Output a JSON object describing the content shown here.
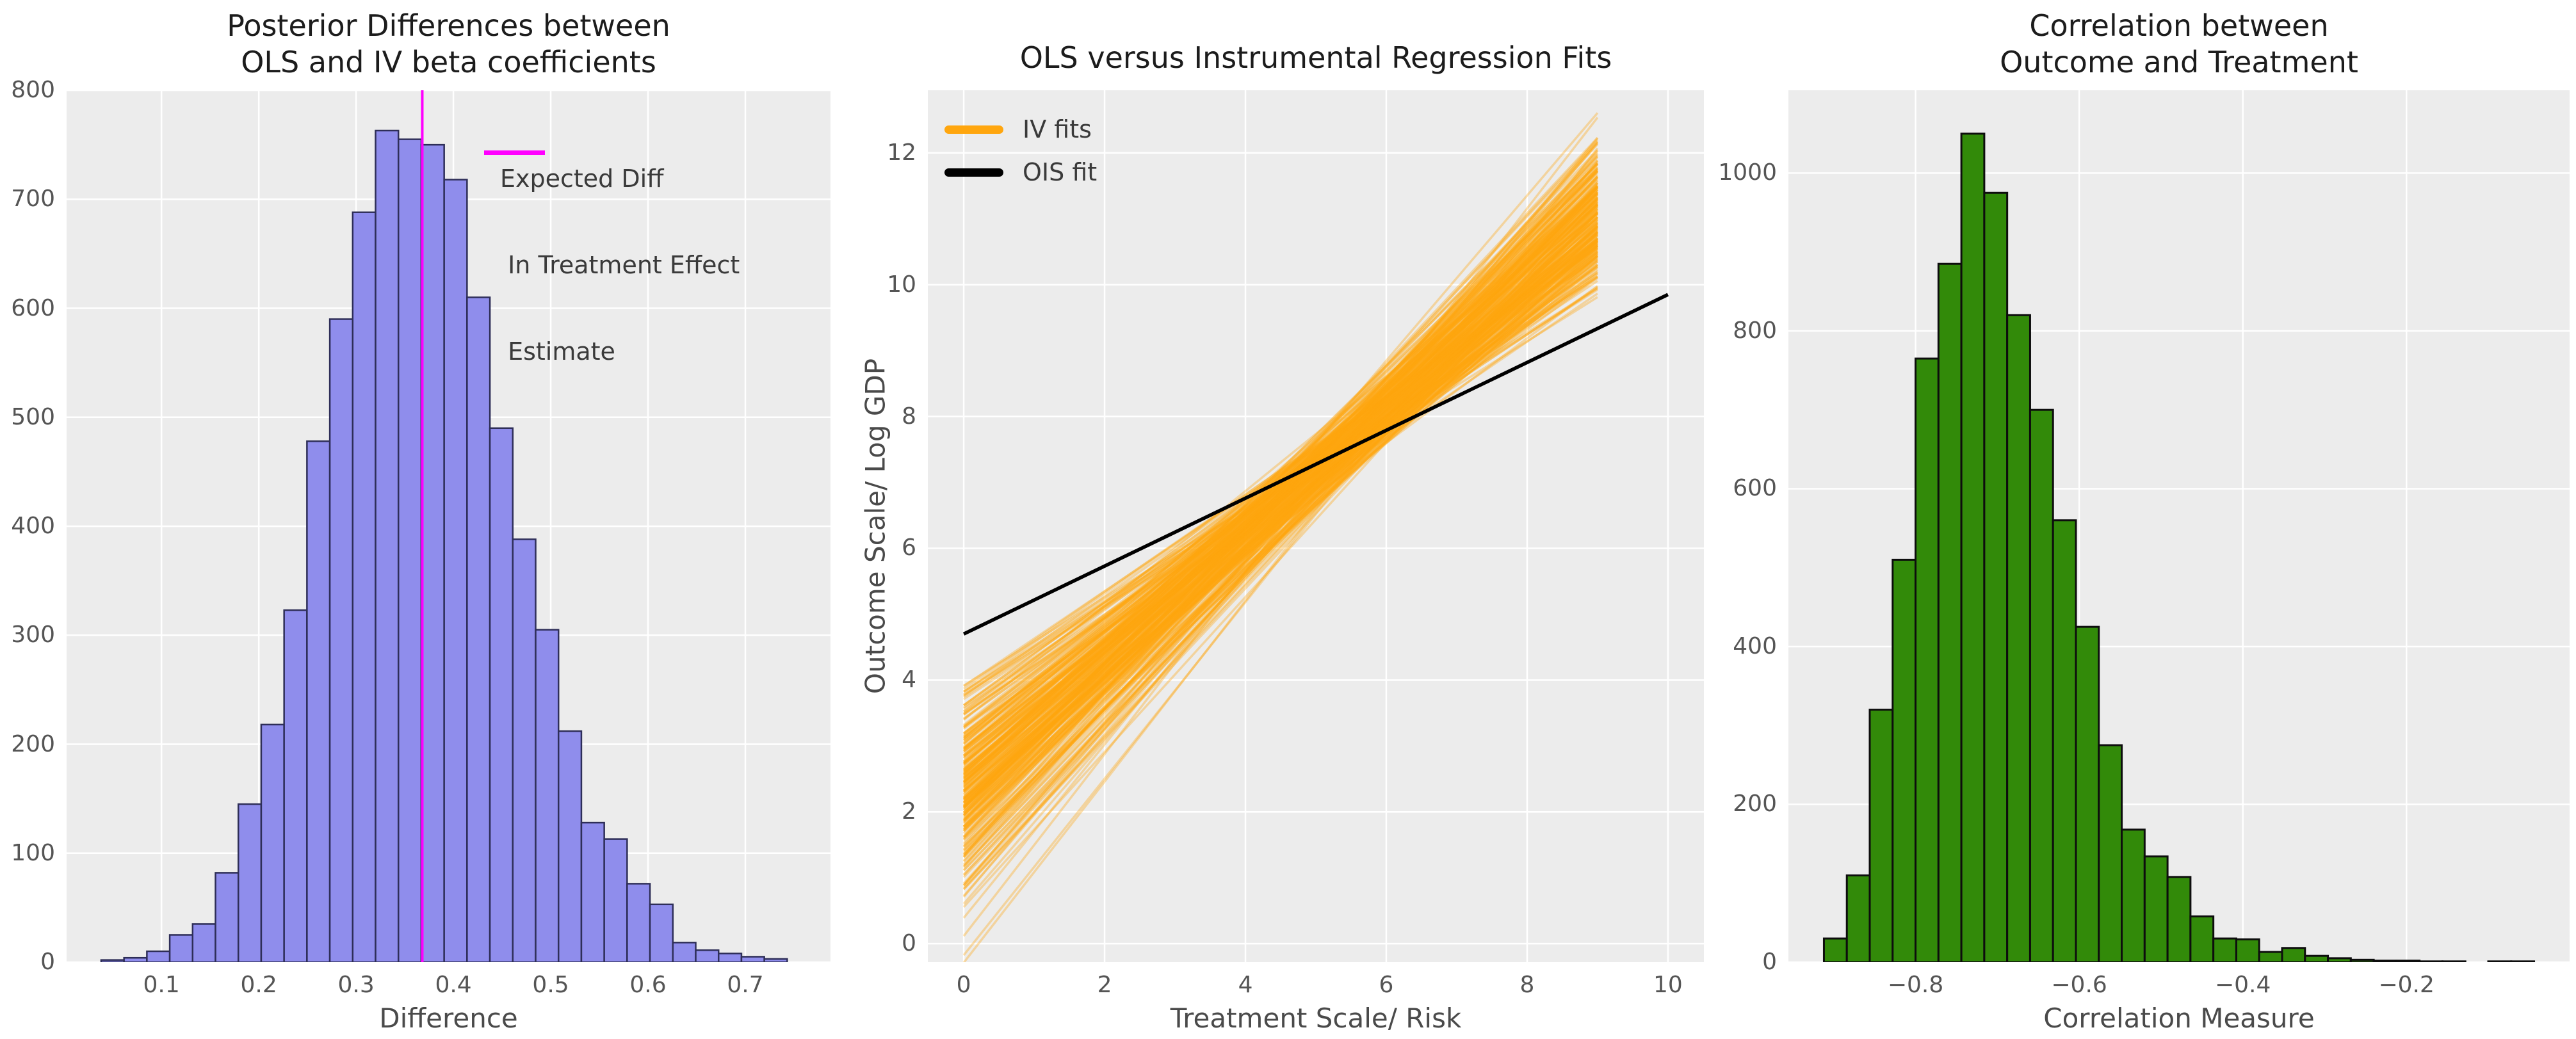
{
  "figure": {
    "background": "#ffffff",
    "panel_background": "#ececec",
    "grid_color": "#ffffff",
    "tick_color": "#555555",
    "title_color": "#1c1c1c",
    "label_color": "#4a4a4a",
    "legend_text_color": "#3a3a3a"
  },
  "chart_data": [
    {
      "id": "posterior-differences-histogram",
      "type": "bar",
      "title_lines": [
        "Posterior Differences between",
        " OLS and IV beta coefficients"
      ],
      "xlabel": "Difference",
      "bar_color": "#8f8dec",
      "bar_edge_color": "#2e2e58",
      "bar_edge_width": 2.5,
      "bin_start": 0.038,
      "bin_width": 0.0235,
      "values": [
        2,
        4,
        10,
        25,
        35,
        82,
        145,
        218,
        323,
        478,
        590,
        688,
        763,
        755,
        750,
        718,
        610,
        490,
        388,
        305,
        212,
        128,
        113,
        72,
        53,
        18,
        11,
        8,
        5,
        3
      ],
      "xlim": [
        0.0025,
        0.7875
      ],
      "ylim": [
        0,
        800
      ],
      "xticks": [
        0.1,
        0.2,
        0.3,
        0.4,
        0.5,
        0.6,
        0.7
      ],
      "xtick_labels": [
        "0.1",
        "0.2",
        "0.3",
        "0.4",
        "0.5",
        "0.6",
        "0.7"
      ],
      "yticks": [
        0,
        100,
        200,
        300,
        400,
        500,
        600,
        700,
        800
      ],
      "ytick_labels": [
        "0",
        "100",
        "200",
        "300",
        "400",
        "500",
        "600",
        "700",
        "800"
      ],
      "grid": true,
      "vline": {
        "x": 0.368,
        "color": "#ff00ff",
        "width": 4,
        "legend_lines": [
          "Expected Diff",
          " In Treatment Effect",
          " Estimate"
        ]
      }
    },
    {
      "id": "ols-vs-iv-regression-fits",
      "type": "line",
      "title_lines": [
        "OLS versus Instrumental Regression Fits"
      ],
      "xlabel": "Treatment Scale/ Risk",
      "ylabel": "Outcome Scale/ Log GDP",
      "xlim": [
        -0.51,
        10.51
      ],
      "ylim": [
        -0.28,
        12.95
      ],
      "xticks": [
        0,
        2,
        4,
        6,
        8,
        10
      ],
      "xtick_labels": [
        "0",
        "2",
        "4",
        "6",
        "8",
        "10"
      ],
      "yticks": [
        0,
        2,
        4,
        6,
        8,
        10,
        12
      ],
      "ytick_labels": [
        "0",
        "2",
        "4",
        "6",
        "8",
        "10",
        "12"
      ],
      "grid": true,
      "iv_fits": {
        "legend_label": "IV fits",
        "color": "#ffa60e",
        "opacity": 0.35,
        "line_width": 3.5,
        "n_lines": 260,
        "x_start": 0,
        "x_end": 9,
        "pivot_x": 5.35,
        "pivot_y": 7.5,
        "pivot_x_jitter": 0.45,
        "pivot_y_jitter": 0.16,
        "slope_mean": 0.98,
        "slope_sd": 0.13,
        "slope_min": 0.67,
        "slope_max": 1.38,
        "seed": 7
      },
      "ols_fit": {
        "legend_label": "OIS fit",
        "color": "#000000",
        "line_width": 5.5,
        "x": [
          0,
          10
        ],
        "y": [
          4.7,
          9.85
        ]
      }
    },
    {
      "id": "correlation-histogram",
      "type": "bar",
      "title_lines": [
        "Correlation between",
        "Outcome and Treatment"
      ],
      "xlabel": "Correlation Measure",
      "bar_color": "#328a09",
      "bar_edge_color": "#0d0d0d",
      "bar_edge_width": 3,
      "bin_start": -0.912,
      "bin_width": 0.028,
      "values": [
        30,
        110,
        320,
        510,
        765,
        885,
        1050,
        975,
        820,
        700,
        560,
        425,
        275,
        168,
        134,
        108,
        58,
        30,
        29,
        13,
        18,
        8,
        5,
        3,
        2,
        2,
        1,
        1,
        0,
        1,
        1
      ],
      "xlim": [
        -0.9554,
        -0.0006
      ],
      "ylim": [
        0,
        1105
      ],
      "xticks": [
        -0.8,
        -0.6,
        -0.4,
        -0.2
      ],
      "xtick_labels": [
        "−0.8",
        "−0.6",
        "−0.4",
        "−0.2"
      ],
      "yticks": [
        0,
        200,
        400,
        600,
        800,
        1000
      ],
      "ytick_labels": [
        "0",
        "200",
        "400",
        "600",
        "800",
        "1000"
      ],
      "grid": true
    }
  ]
}
